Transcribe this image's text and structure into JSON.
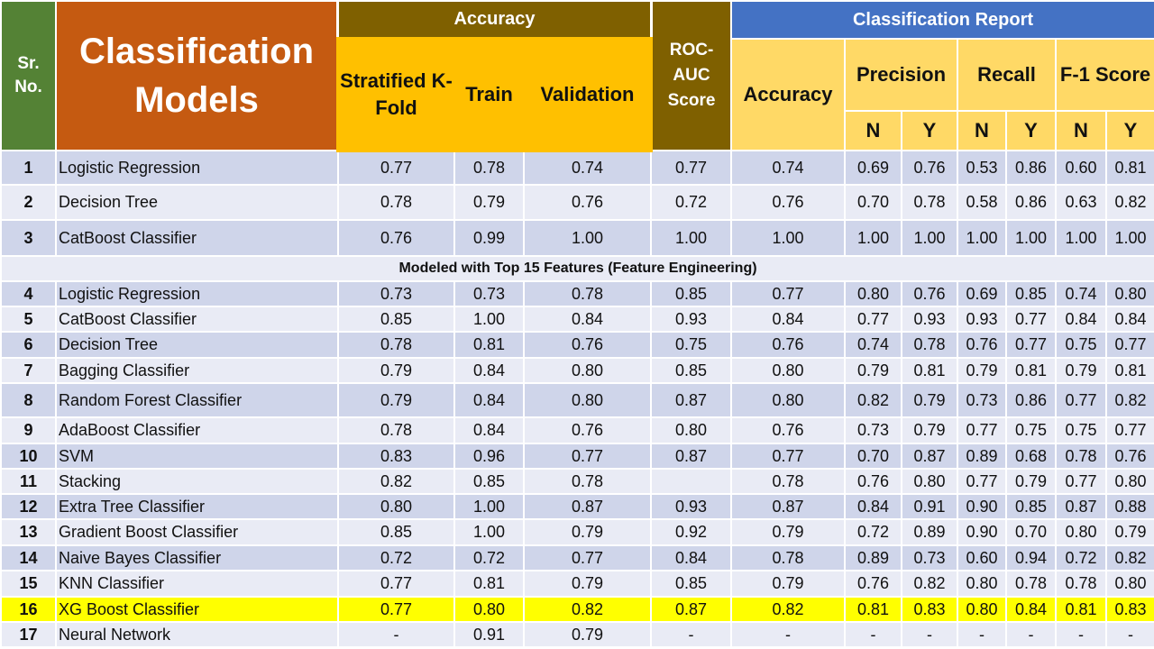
{
  "header": {
    "sr_no": "Sr. No.",
    "models": "Classification Models",
    "accuracy_group": "Accuracy",
    "stratified": "Stratified K-Fold",
    "train": "Train",
    "validation": "Validation",
    "roc_auc": "ROC-AUC Score",
    "report_group": "Classification Report",
    "report_accuracy": "Accuracy",
    "precision": "Precision",
    "recall": "Recall",
    "f1": "F-1 Score",
    "n": "N",
    "y": "Y"
  },
  "section_label": "Modeled with Top 15 Features (Feature Engineering)",
  "colors": {
    "sr_header": "#548235",
    "models_header": "#c55a11",
    "accuracy_header": "#7f6000",
    "report_header": "#4472c4",
    "gold": "#ffc000",
    "light_gold": "#ffd966",
    "highlight": "#ffff00"
  },
  "rows_top": [
    {
      "sr": "1",
      "model": "Logistic Regression",
      "values": [
        "0.77",
        "0.78",
        "0.74",
        "0.77",
        "0.74",
        "0.69",
        "0.76",
        "0.53",
        "0.86",
        "0.60",
        "0.81"
      ]
    },
    {
      "sr": "2",
      "model": "Decision Tree",
      "values": [
        "0.78",
        "0.79",
        "0.76",
        "0.72",
        "0.76",
        "0.70",
        "0.78",
        "0.58",
        "0.86",
        "0.63",
        "0.82"
      ]
    },
    {
      "sr": "3",
      "model": "CatBoost Classifier",
      "values": [
        "0.76",
        "0.99",
        "1.00",
        "1.00",
        "1.00",
        "1.00",
        "1.00",
        "1.00",
        "1.00",
        "1.00",
        "1.00"
      ]
    }
  ],
  "rows_fe": [
    {
      "sr": "4",
      "model": "Logistic Regression",
      "values": [
        "0.73",
        "0.73",
        "0.78",
        "0.85",
        "0.77",
        "0.80",
        "0.76",
        "0.69",
        "0.85",
        "0.74",
        "0.80"
      ]
    },
    {
      "sr": "5",
      "model": "CatBoost Classifier",
      "values": [
        "0.85",
        "1.00",
        "0.84",
        "0.93",
        "0.84",
        "0.77",
        "0.93",
        "0.93",
        "0.77",
        "0.84",
        "0.84"
      ]
    },
    {
      "sr": "6",
      "model": "Decision Tree",
      "values": [
        "0.78",
        "0.81",
        "0.76",
        "0.75",
        "0.76",
        "0.74",
        "0.78",
        "0.76",
        "0.77",
        "0.75",
        "0.77"
      ]
    },
    {
      "sr": "7",
      "model": "Bagging Classifier",
      "values": [
        "0.79",
        "0.84",
        "0.80",
        "0.85",
        "0.80",
        "0.79",
        "0.81",
        "0.79",
        "0.81",
        "0.79",
        "0.81"
      ]
    },
    {
      "sr": "8",
      "model": "Random Forest Classifier",
      "values": [
        "0.79",
        "0.84",
        "0.80",
        "0.87",
        "0.80",
        "0.82",
        "0.79",
        "0.73",
        "0.86",
        "0.77",
        "0.82"
      ]
    },
    {
      "sr": "9",
      "model": "AdaBoost Classifier",
      "values": [
        "0.78",
        "0.84",
        "0.76",
        "0.80",
        "0.76",
        "0.73",
        "0.79",
        "0.77",
        "0.75",
        "0.75",
        "0.77"
      ]
    },
    {
      "sr": "10",
      "model": "SVM",
      "values": [
        "0.83",
        "0.96",
        "0.77",
        "0.87",
        "0.77",
        "0.70",
        "0.87",
        "0.89",
        "0.68",
        "0.78",
        "0.76"
      ]
    },
    {
      "sr": "11",
      "model": "Stacking",
      "values": [
        "0.82",
        "0.85",
        "0.78",
        "",
        "0.78",
        "0.76",
        "0.80",
        "0.77",
        "0.79",
        "0.77",
        "0.80"
      ]
    },
    {
      "sr": "12",
      "model": "Extra Tree Classifier",
      "values": [
        "0.80",
        "1.00",
        "0.87",
        "0.93",
        "0.87",
        "0.84",
        "0.91",
        "0.90",
        "0.85",
        "0.87",
        "0.88"
      ]
    },
    {
      "sr": "13",
      "model": "Gradient Boost Classifier",
      "values": [
        "0.85",
        "1.00",
        "0.79",
        "0.92",
        "0.79",
        "0.72",
        "0.89",
        "0.90",
        "0.70",
        "0.80",
        "0.79"
      ]
    },
    {
      "sr": "14",
      "model": "Naive Bayes Classifier",
      "values": [
        "0.72",
        "0.72",
        "0.77",
        "0.84",
        "0.78",
        "0.89",
        "0.73",
        "0.60",
        "0.94",
        "0.72",
        "0.82"
      ]
    },
    {
      "sr": "15",
      "model": "KNN Classifier",
      "values": [
        "0.77",
        "0.81",
        "0.79",
        "0.85",
        "0.79",
        "0.76",
        "0.82",
        "0.80",
        "0.78",
        "0.78",
        "0.80"
      ]
    },
    {
      "sr": "16",
      "model": "XG Boost Classifier",
      "values": [
        "0.77",
        "0.80",
        "0.82",
        "0.87",
        "0.82",
        "0.81",
        "0.83",
        "0.80",
        "0.84",
        "0.81",
        "0.83"
      ]
    },
    {
      "sr": "17",
      "model": "Neural Network",
      "values": [
        "-",
        "0.91",
        "0.79",
        "-",
        "-",
        "-",
        "-",
        "-",
        "-",
        "-",
        "-"
      ]
    }
  ]
}
